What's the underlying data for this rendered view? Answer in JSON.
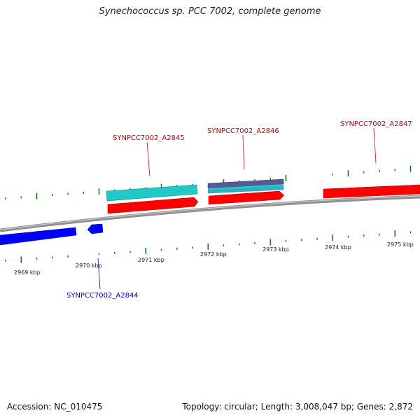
{
  "title": "Synechococcus sp. PCC 7002, complete genome",
  "footer": {
    "accession": "Accession: NC_010475",
    "summary": "Topology: circular; Length: 3,008,047 bp; Genes: 2,872"
  },
  "colors": {
    "forward_gene": "#ff0000",
    "reverse_gene": "#0000ff",
    "feature_cyan": "#20c8c8",
    "feature_purple": "#555a99",
    "backbone": "#909090",
    "ticks": "#1a7a1a",
    "label_forward": "#cc0000",
    "label_reverse": "#0000cc"
  },
  "scale": {
    "tick_labels": [
      "2969 kbp",
      "2970 kbp",
      "2971 kbp",
      "2972 kbp",
      "2973 kbp",
      "2974 kbp",
      "2975 kbp"
    ]
  },
  "genes": [
    {
      "name": "SYNPCC7002_A2844",
      "strand": "reverse"
    },
    {
      "name": "SYNPCC7002_A2845",
      "strand": "forward"
    },
    {
      "name": "SYNPCC7002_A2846",
      "strand": "forward"
    },
    {
      "name": "SYNPCC7002_A2847",
      "strand": "forward"
    }
  ]
}
